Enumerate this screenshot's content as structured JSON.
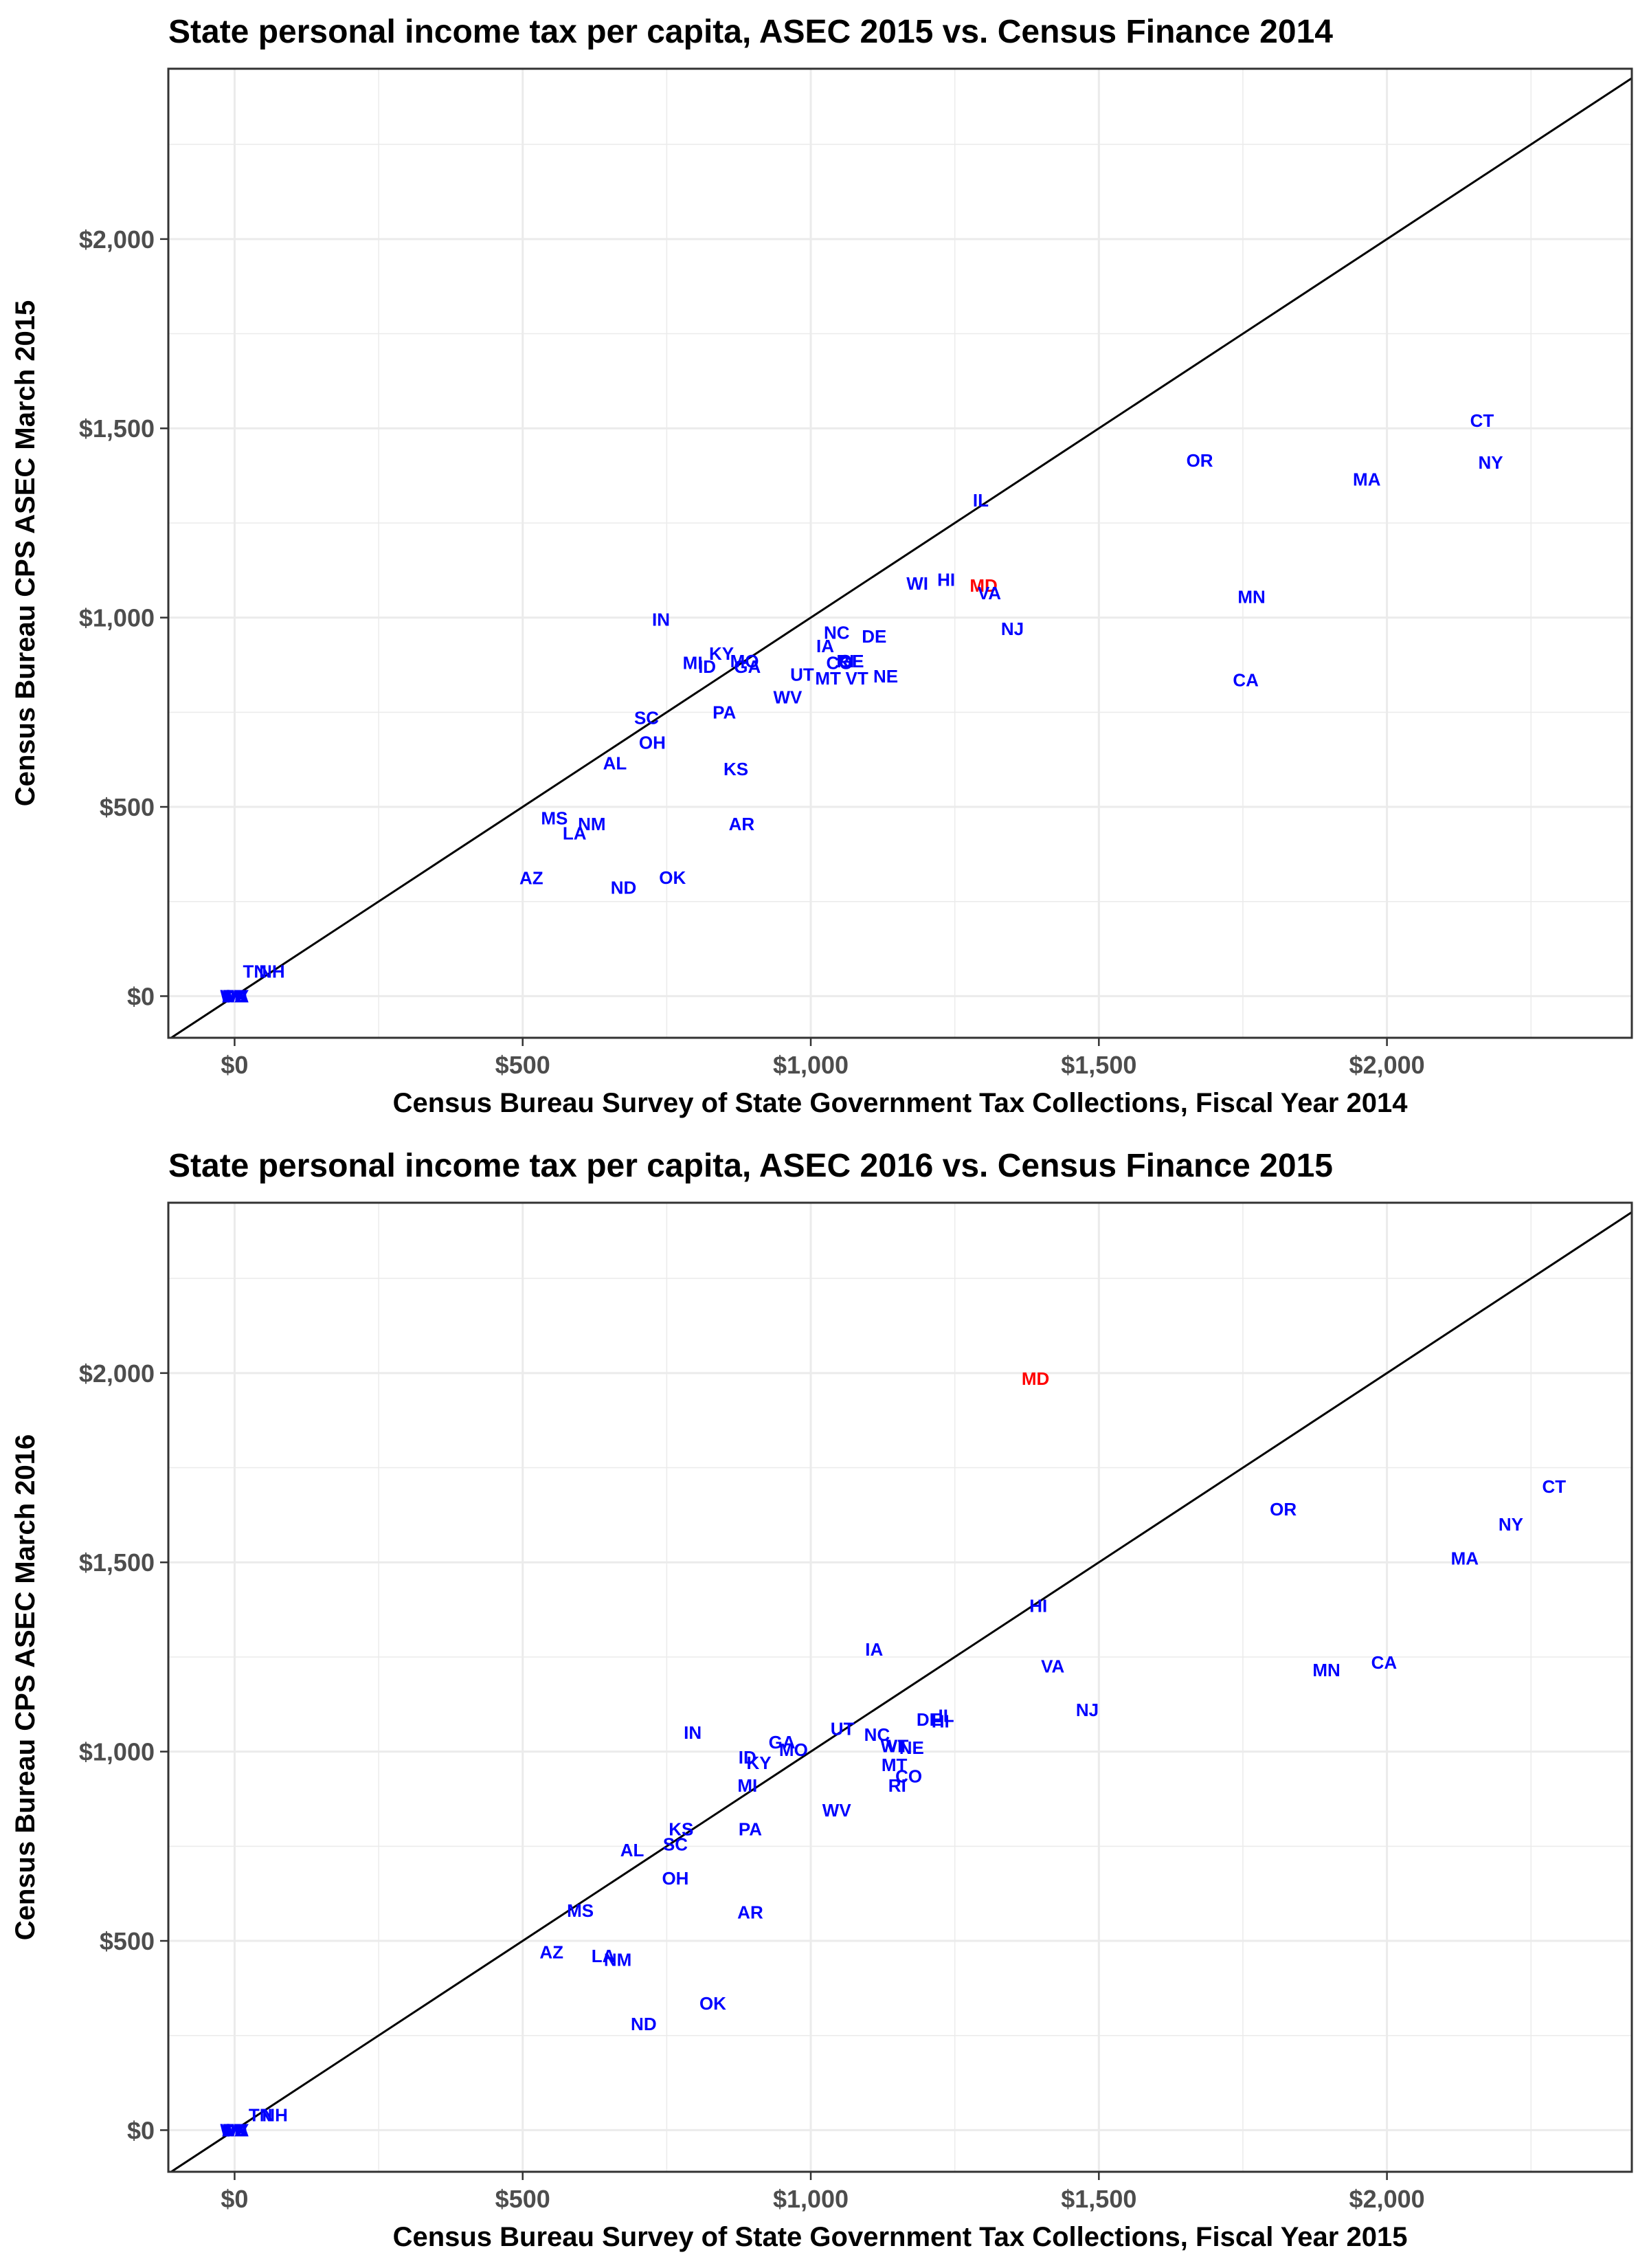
{
  "colors": {
    "point": "#0000ff",
    "highlight": "#ff0000",
    "grid": "#ebebeb",
    "frame": "#333333",
    "diagonal": "#000000",
    "tick_text": "#4d4d4d"
  },
  "chart_data": [
    {
      "type": "scatter",
      "title": "State personal income tax per capita, ASEC 2015 vs. Census Finance 2014",
      "xlabel": "Census Bureau Survey of State Government Tax Collections, Fiscal Year 2014",
      "ylabel": "Census Bureau CPS ASEC March 2015",
      "xlim": [
        -115,
        2425
      ],
      "ylim": [
        -110,
        2450
      ],
      "x_ticks": [
        0,
        500,
        1000,
        1500,
        2000
      ],
      "x_tick_labels": [
        "$0",
        "$500",
        "$1,000",
        "$1,500",
        "$2,000"
      ],
      "y_ticks": [
        0,
        500,
        1000,
        1500,
        2000
      ],
      "y_tick_labels": [
        "$0",
        "$500",
        "$1,000",
        "$1,500",
        "$2,000"
      ],
      "reference_line": "y = x",
      "grid": true,
      "highlight": "MD",
      "points": [
        {
          "label": "AK",
          "x": 0,
          "y": 0
        },
        {
          "label": "FL",
          "x": 0,
          "y": 0
        },
        {
          "label": "NV",
          "x": 0,
          "y": 0
        },
        {
          "label": "SD",
          "x": 0,
          "y": 0
        },
        {
          "label": "TX",
          "x": 0,
          "y": 0
        },
        {
          "label": "WA",
          "x": 0,
          "y": 0
        },
        {
          "label": "WY",
          "x": 0,
          "y": 0
        },
        {
          "label": "TN",
          "x": 35,
          "y": 65
        },
        {
          "label": "NH",
          "x": 65,
          "y": 65
        },
        {
          "label": "AZ",
          "x": 515,
          "y": 312
        },
        {
          "label": "MS",
          "x": 555,
          "y": 470
        },
        {
          "label": "LA",
          "x": 590,
          "y": 430
        },
        {
          "label": "NM",
          "x": 620,
          "y": 455
        },
        {
          "label": "AL",
          "x": 660,
          "y": 615
        },
        {
          "label": "ND",
          "x": 675,
          "y": 287
        },
        {
          "label": "SC",
          "x": 715,
          "y": 735
        },
        {
          "label": "OH",
          "x": 725,
          "y": 670
        },
        {
          "label": "OK",
          "x": 760,
          "y": 313
        },
        {
          "label": "IN",
          "x": 740,
          "y": 995
        },
        {
          "label": "MI",
          "x": 795,
          "y": 880
        },
        {
          "label": "ID",
          "x": 820,
          "y": 870
        },
        {
          "label": "KY",
          "x": 845,
          "y": 905
        },
        {
          "label": "MO",
          "x": 885,
          "y": 885
        },
        {
          "label": "GA",
          "x": 890,
          "y": 870
        },
        {
          "label": "PA",
          "x": 850,
          "y": 750
        },
        {
          "label": "KS",
          "x": 870,
          "y": 600
        },
        {
          "label": "AR",
          "x": 880,
          "y": 455
        },
        {
          "label": "WV",
          "x": 960,
          "y": 790
        },
        {
          "label": "UT",
          "x": 985,
          "y": 850
        },
        {
          "label": "IA",
          "x": 1025,
          "y": 925
        },
        {
          "label": "NC",
          "x": 1045,
          "y": 960
        },
        {
          "label": "MT",
          "x": 1030,
          "y": 840
        },
        {
          "label": "CO",
          "x": 1050,
          "y": 880
        },
        {
          "label": "RI",
          "x": 1060,
          "y": 885
        },
        {
          "label": "GE",
          "x": 1070,
          "y": 885
        },
        {
          "label": "VT",
          "x": 1080,
          "y": 840
        },
        {
          "label": "DE",
          "x": 1110,
          "y": 950
        },
        {
          "label": "NE",
          "x": 1130,
          "y": 845
        },
        {
          "label": "WI",
          "x": 1185,
          "y": 1090
        },
        {
          "label": "HI",
          "x": 1235,
          "y": 1100
        },
        {
          "label": "MD",
          "x": 1300,
          "y": 1085
        },
        {
          "label": "VA",
          "x": 1310,
          "y": 1065
        },
        {
          "label": "IL",
          "x": 1295,
          "y": 1310
        },
        {
          "label": "NJ",
          "x": 1350,
          "y": 970
        },
        {
          "label": "OR",
          "x": 1675,
          "y": 1415
        },
        {
          "label": "CA",
          "x": 1755,
          "y": 835
        },
        {
          "label": "MN",
          "x": 1765,
          "y": 1055
        },
        {
          "label": "MA",
          "x": 1965,
          "y": 1365
        },
        {
          "label": "CT",
          "x": 2165,
          "y": 1520
        },
        {
          "label": "NY",
          "x": 2180,
          "y": 1410
        }
      ]
    },
    {
      "type": "scatter",
      "title": "State personal income tax per capita, ASEC 2016 vs. Census Finance 2015",
      "xlabel": "Census Bureau Survey of State Government Tax Collections, Fiscal Year 2015",
      "ylabel": "Census Bureau CPS ASEC March 2016",
      "xlim": [
        -115,
        2425
      ],
      "ylim": [
        -110,
        2450
      ],
      "x_ticks": [
        0,
        500,
        1000,
        1500,
        2000
      ],
      "x_tick_labels": [
        "$0",
        "$500",
        "$1,000",
        "$1,500",
        "$2,000"
      ],
      "y_ticks": [
        0,
        500,
        1000,
        1500,
        2000
      ],
      "y_tick_labels": [
        "$0",
        "$500",
        "$1,000",
        "$1,500",
        "$2,000"
      ],
      "reference_line": "y = x",
      "grid": true,
      "highlight": "MD",
      "points": [
        {
          "label": "AK",
          "x": 0,
          "y": 0
        },
        {
          "label": "FL",
          "x": 0,
          "y": 0
        },
        {
          "label": "NV",
          "x": 0,
          "y": 0
        },
        {
          "label": "SD",
          "x": 0,
          "y": 0
        },
        {
          "label": "TX",
          "x": 0,
          "y": 0
        },
        {
          "label": "WA",
          "x": 0,
          "y": 0
        },
        {
          "label": "WY",
          "x": 0,
          "y": 0
        },
        {
          "label": "TN",
          "x": 45,
          "y": 40
        },
        {
          "label": "NH",
          "x": 70,
          "y": 40
        },
        {
          "label": "AZ",
          "x": 550,
          "y": 470
        },
        {
          "label": "LA",
          "x": 640,
          "y": 460
        },
        {
          "label": "NM",
          "x": 665,
          "y": 450
        },
        {
          "label": "MS",
          "x": 600,
          "y": 580
        },
        {
          "label": "ND",
          "x": 710,
          "y": 280
        },
        {
          "label": "AL",
          "x": 690,
          "y": 740
        },
        {
          "label": "SC",
          "x": 765,
          "y": 755
        },
        {
          "label": "KS",
          "x": 775,
          "y": 795
        },
        {
          "label": "OH",
          "x": 765,
          "y": 665
        },
        {
          "label": "OK",
          "x": 830,
          "y": 335
        },
        {
          "label": "IN",
          "x": 795,
          "y": 1050
        },
        {
          "label": "PA",
          "x": 895,
          "y": 795
        },
        {
          "label": "AR",
          "x": 895,
          "y": 575
        },
        {
          "label": "ID",
          "x": 890,
          "y": 985
        },
        {
          "label": "KY",
          "x": 910,
          "y": 970
        },
        {
          "label": "MI",
          "x": 890,
          "y": 910
        },
        {
          "label": "GA",
          "x": 950,
          "y": 1025
        },
        {
          "label": "MO",
          "x": 970,
          "y": 1005
        },
        {
          "label": "WV",
          "x": 1045,
          "y": 845
        },
        {
          "label": "UT",
          "x": 1055,
          "y": 1060
        },
        {
          "label": "IA",
          "x": 1110,
          "y": 1270
        },
        {
          "label": "NC",
          "x": 1115,
          "y": 1045
        },
        {
          "label": "WI",
          "x": 1140,
          "y": 1015
        },
        {
          "label": "VT",
          "x": 1150,
          "y": 1015
        },
        {
          "label": "NE",
          "x": 1175,
          "y": 1010
        },
        {
          "label": "MT",
          "x": 1145,
          "y": 965
        },
        {
          "label": "CO",
          "x": 1170,
          "y": 935
        },
        {
          "label": "RI",
          "x": 1150,
          "y": 910
        },
        {
          "label": "DE",
          "x": 1205,
          "y": 1085
        },
        {
          "label": "IL",
          "x": 1235,
          "y": 1095
        },
        {
          "label": "HI",
          "x": 1225,
          "y": 1080
        },
        {
          "label": "MD",
          "x": 1390,
          "y": 1985
        },
        {
          "label": "HI",
          "x": 1395,
          "y": 1385
        },
        {
          "label": "VA",
          "x": 1420,
          "y": 1225
        },
        {
          "label": "NJ",
          "x": 1480,
          "y": 1110
        },
        {
          "label": "OR",
          "x": 1820,
          "y": 1640
        },
        {
          "label": "MN",
          "x": 1895,
          "y": 1215
        },
        {
          "label": "CA",
          "x": 1995,
          "y": 1235
        },
        {
          "label": "MA",
          "x": 2135,
          "y": 1510
        },
        {
          "label": "NY",
          "x": 2215,
          "y": 1600
        },
        {
          "label": "CT",
          "x": 2290,
          "y": 1700
        }
      ]
    }
  ]
}
